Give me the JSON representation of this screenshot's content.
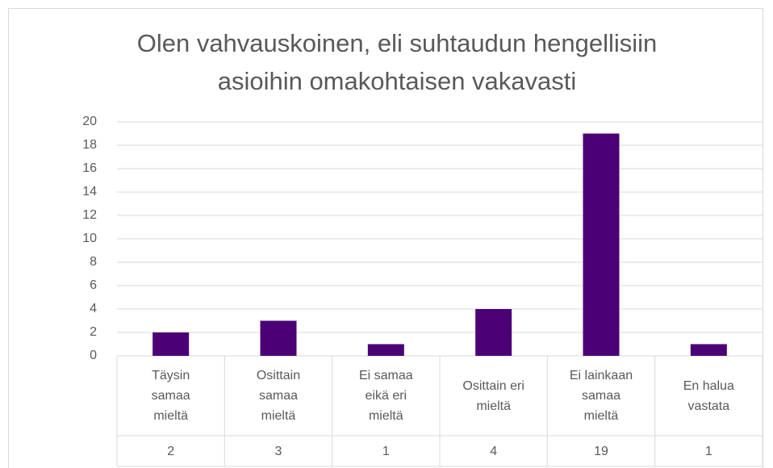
{
  "chart_data": {
    "type": "bar",
    "title": "Olen vahvauskoinen, eli suhtaudun hengellisiin asioihin omakohtaisen vakavasti",
    "categories": [
      "Täysin samaa mieltä",
      "Osittain samaa mieltä",
      "Ei samaa eikä eri mieltä",
      "Osittain eri mieltä",
      "Ei lainkaan samaa mieltä",
      "En halua vastata"
    ],
    "values": [
      2,
      3,
      1,
      4,
      19,
      1
    ],
    "color": "#4b0076",
    "ylim": [
      0,
      20
    ],
    "yticks": [
      0,
      2,
      4,
      6,
      8,
      10,
      12,
      14,
      16,
      18,
      20
    ],
    "grid": true,
    "data_table": true
  }
}
